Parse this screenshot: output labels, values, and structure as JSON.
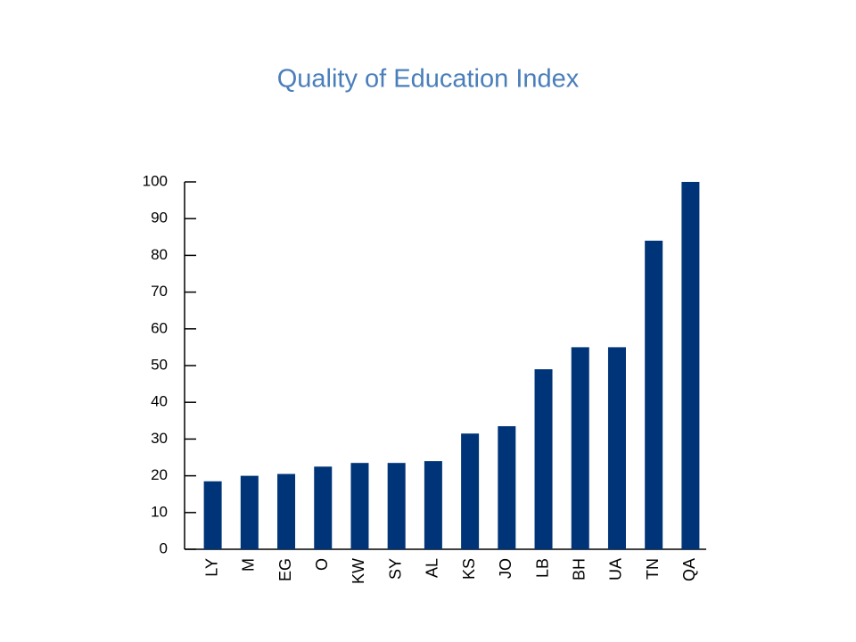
{
  "chart_data": {
    "type": "bar",
    "title": "Quality of Education Index",
    "categories": [
      "LY",
      "M",
      "EG",
      "O",
      "KW",
      "SY",
      "AL",
      "KS",
      "JO",
      "LB",
      "BH",
      "UA",
      "TN",
      "QA"
    ],
    "values": [
      18.5,
      20,
      20.5,
      22.5,
      23.5,
      23.5,
      24,
      31.5,
      33.5,
      49,
      55,
      55,
      84,
      100
    ],
    "color": "#003478",
    "ylim": [
      0,
      100
    ],
    "yticks": [
      0,
      10,
      20,
      30,
      40,
      50,
      60,
      70,
      80,
      90,
      100
    ],
    "grid": false
  }
}
